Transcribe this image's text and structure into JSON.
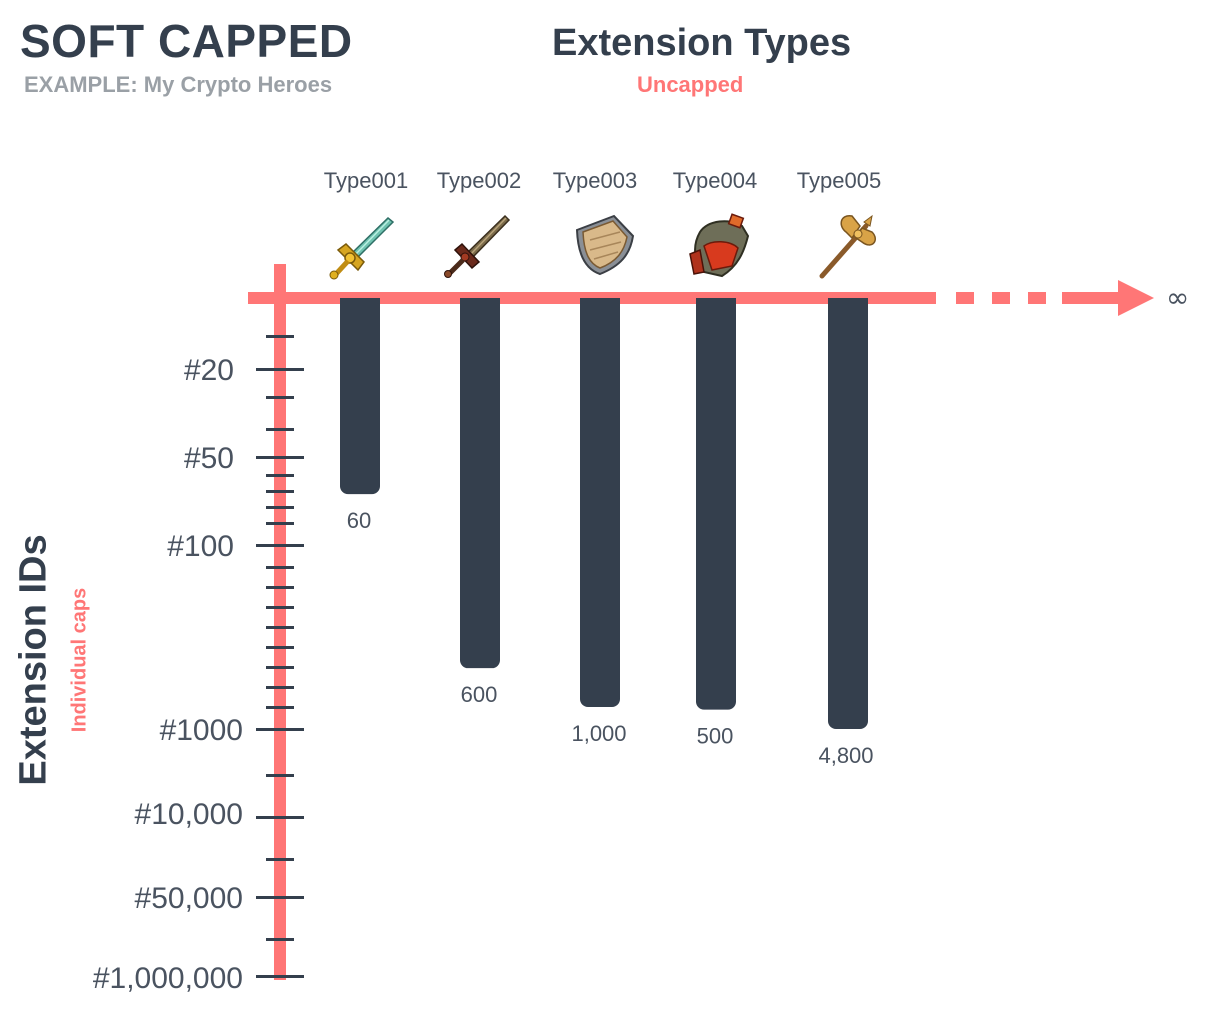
{
  "header": {
    "title": "SOFT CAPPED",
    "subtitle": "EXAMPLE: My Crypto Heroes"
  },
  "x_axis": {
    "title": "Extension Types",
    "subtitle": "Uncapped",
    "end_label": "∞"
  },
  "y_axis": {
    "title": "Extension IDs",
    "subtitle": "Individual caps",
    "tick_labels": [
      "#20",
      "#50",
      "#100",
      "#1000",
      "#10,000",
      "#50,000",
      "#1,000,000"
    ]
  },
  "colors": {
    "axis": "#ff7676",
    "bar": "#343f4d",
    "tick": "#343f4d",
    "text_dark": "#343f4d",
    "text_muted": "#9aa0a6"
  },
  "types": [
    {
      "label": "Type001",
      "icon": "sword-icon",
      "value_label": "60",
      "value": 60
    },
    {
      "label": "Type002",
      "icon": "dark-sword-icon",
      "value_label": "600",
      "value": 600
    },
    {
      "label": "Type003",
      "icon": "shield-icon",
      "value_label": "1,000",
      "value": 1000
    },
    {
      "label": "Type004",
      "icon": "armor-icon",
      "value_label": "500",
      "value": 500
    },
    {
      "label": "Type005",
      "icon": "battle-axe-icon",
      "value_label": "4,800",
      "value": 4800
    }
  ]
}
